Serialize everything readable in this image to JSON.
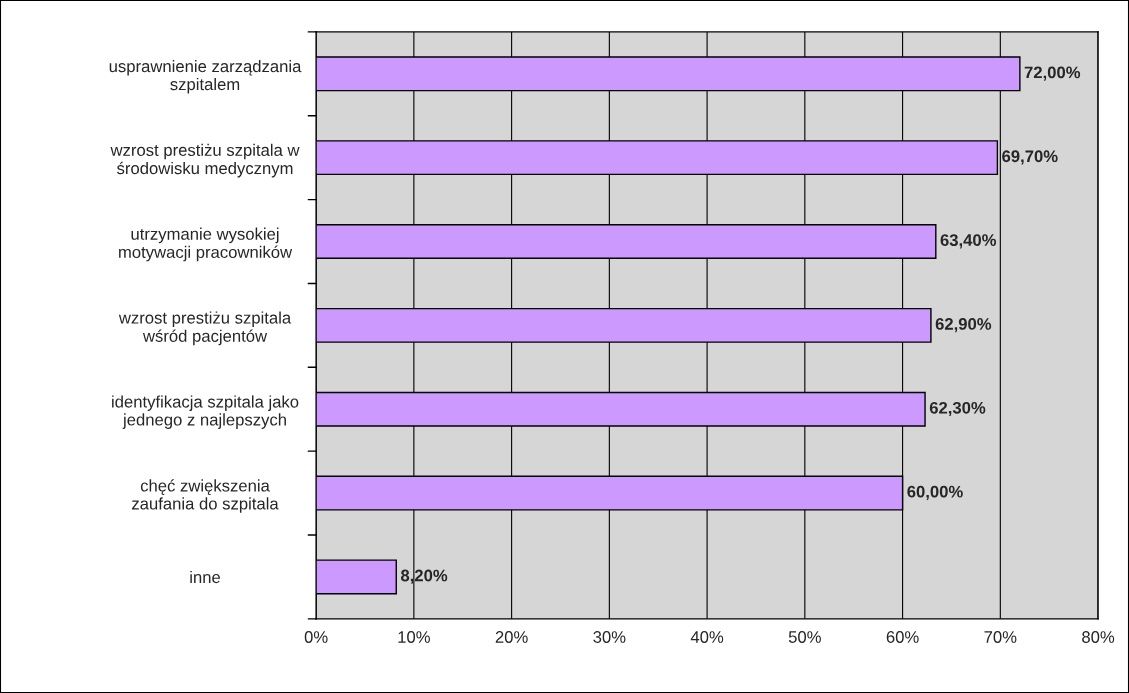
{
  "chart_data": {
    "type": "bar",
    "orientation": "horizontal",
    "categories": [
      "usprawnienie zarządzania\nszpitalem",
      "wzrost prestiżu szpitala w\nśrodowisku medycznym",
      "utrzymanie wysokiej\nmotywacji pracowników",
      "wzrost prestiżu szpitala\nwśród pacjentów",
      "identyfikacja szpitala jako\njednego z najlepszych",
      "chęć zwiększenia\nzaufania do szpitala",
      "inne"
    ],
    "values": [
      72.0,
      69.7,
      63.4,
      62.9,
      62.3,
      60.0,
      8.2
    ],
    "value_labels": [
      "72,00%",
      "69,70%",
      "63,40%",
      "62,90%",
      "62,30%",
      "60,00%",
      "8,20%"
    ],
    "color": "#cc99ff",
    "xlim": [
      0,
      80
    ],
    "xticks": [
      {
        "value": 0,
        "label": "0%"
      },
      {
        "value": 10,
        "label": "10%"
      },
      {
        "value": 20,
        "label": "20%"
      },
      {
        "value": 30,
        "label": "30%"
      },
      {
        "value": 40,
        "label": "40%"
      },
      {
        "value": 50,
        "label": "50%"
      },
      {
        "value": 60,
        "label": "60%"
      },
      {
        "value": 70,
        "label": "70%"
      },
      {
        "value": 80,
        "label": "80%"
      }
    ],
    "grid": "x",
    "legend": false
  }
}
